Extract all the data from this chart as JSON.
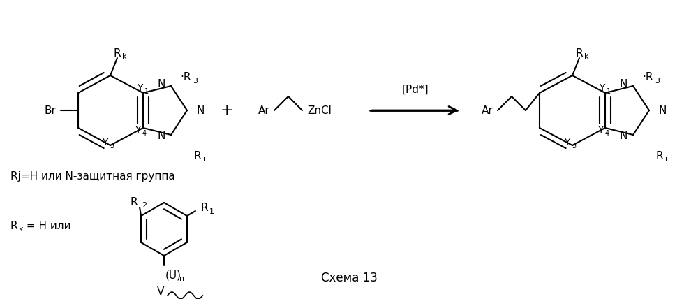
{
  "title": "Схема 13",
  "bg_color": "#ffffff",
  "figsize": [
    10.0,
    4.28
  ],
  "dpi": 100,
  "xlim": [
    0,
    1000
  ],
  "ylim": [
    0,
    428
  ],
  "fs_main": 11,
  "fs_sub": 8,
  "lw": 1.5
}
